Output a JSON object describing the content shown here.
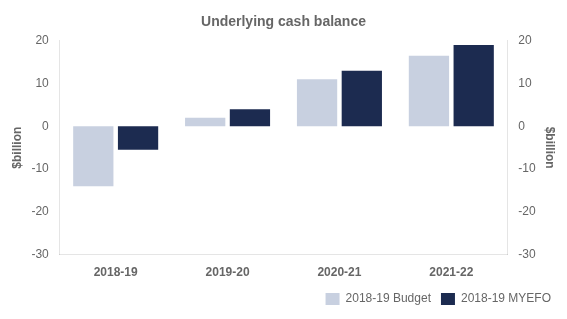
{
  "chart_data": {
    "type": "bar",
    "title": "Underlying cash balance",
    "ylabel": "$billion",
    "y2label": "$billion",
    "categories": [
      "2018-19",
      "2019-20",
      "2020-21",
      "2021-22"
    ],
    "series": [
      {
        "name": "2018-19 Budget",
        "color": "#c8d0e0",
        "values": [
          -14.0,
          2.0,
          11.0,
          16.5
        ]
      },
      {
        "name": "2018-19 MYEFO",
        "color": "#1c2b50",
        "values": [
          -5.5,
          4.0,
          13.0,
          19.0
        ]
      }
    ],
    "ylim": [
      -30,
      20
    ],
    "yticks": [
      -30,
      -20,
      -10,
      0,
      10,
      20
    ],
    "y2lim": [
      -30,
      20
    ],
    "y2ticks": [
      -30,
      -20,
      -10,
      0,
      10,
      20
    ],
    "grid": false,
    "legend": "lower right"
  }
}
